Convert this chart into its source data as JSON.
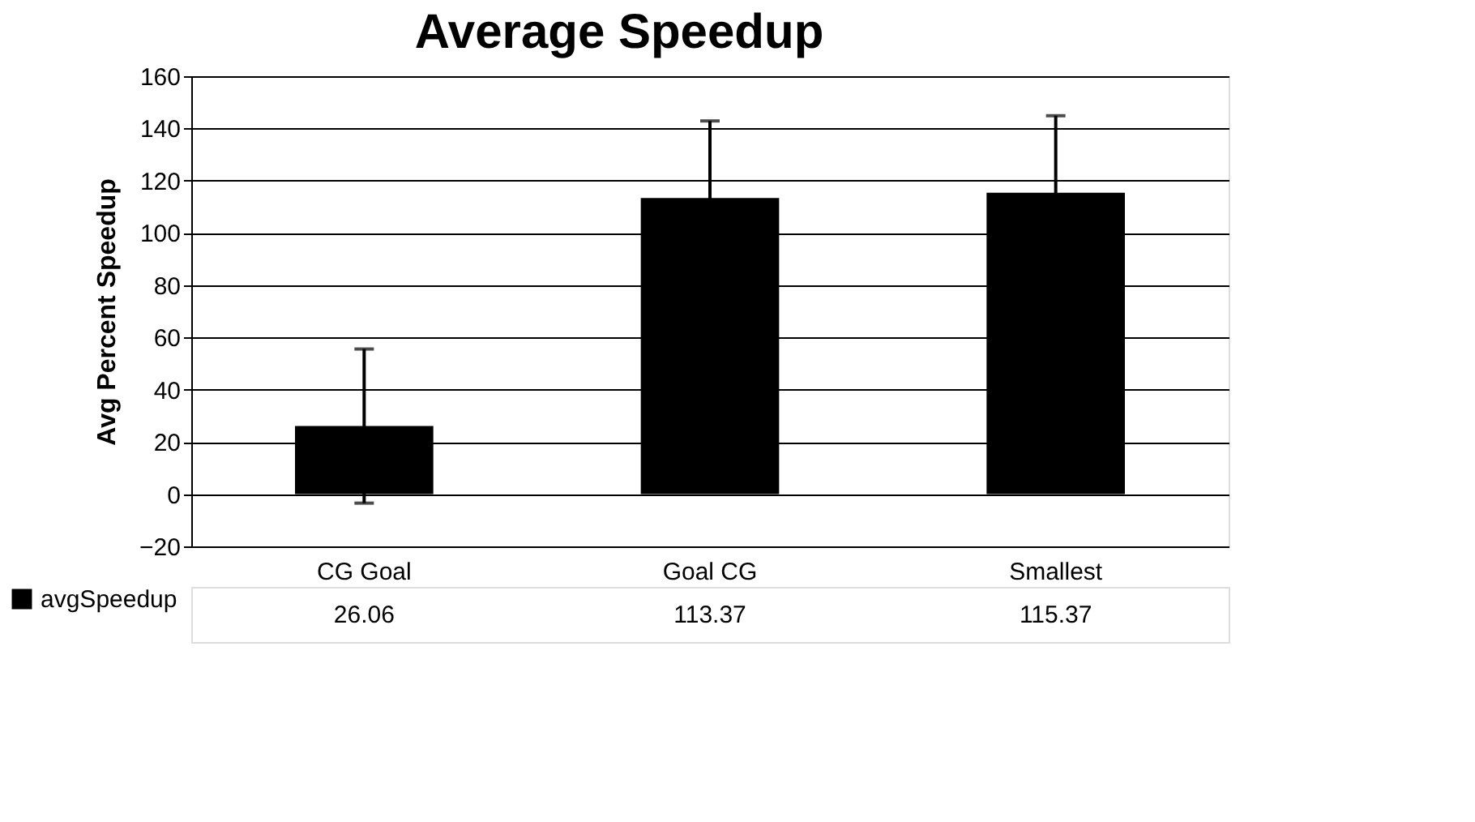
{
  "chart_data": {
    "type": "bar",
    "title": "Average Speedup",
    "ylabel": "Avg Percent Speedup",
    "categories": [
      "CG Goal",
      "Goal CG",
      "Smallest"
    ],
    "series": [
      {
        "name": "avgSpeedup",
        "color": "#000000",
        "values": [
          26.06,
          113.37,
          115.37
        ],
        "errors": [
          29.5,
          29.5,
          29.5
        ]
      }
    ],
    "ylim": [
      -20,
      160
    ],
    "yticks": [
      -20,
      0,
      20,
      40,
      60,
      80,
      100,
      120,
      140,
      160
    ],
    "grid": "y",
    "data_labels": true
  }
}
